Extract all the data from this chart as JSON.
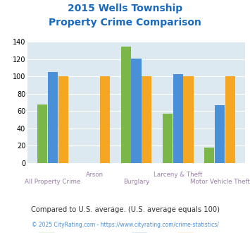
{
  "title_line1": "2015 Wells Township",
  "title_line2": "Property Crime Comparison",
  "categories": [
    "All Property Crime",
    "Arson",
    "Burglary",
    "Larceny & Theft",
    "Motor Vehicle Theft"
  ],
  "wells_township": [
    68,
    0,
    135,
    57,
    18
  ],
  "ohio": [
    105,
    0,
    121,
    103,
    67
  ],
  "national": [
    100,
    100,
    100,
    100,
    100
  ],
  "wells_color": "#7ab648",
  "ohio_color": "#4a90d9",
  "national_color": "#f5a623",
  "bg_color": "#dce9f0",
  "title_color": "#1a6abf",
  "xlabel_color": "#9b7fa6",
  "footer_text": "Compared to U.S. average. (U.S. average equals 100)",
  "copyright_text": "© 2025 CityRating.com - https://www.cityrating.com/crime-statistics/",
  "footer_color": "#333333",
  "copyright_color": "#4a90d9",
  "ylim": [
    0,
    140
  ],
  "yticks": [
    0,
    20,
    40,
    60,
    80,
    100,
    120,
    140
  ]
}
